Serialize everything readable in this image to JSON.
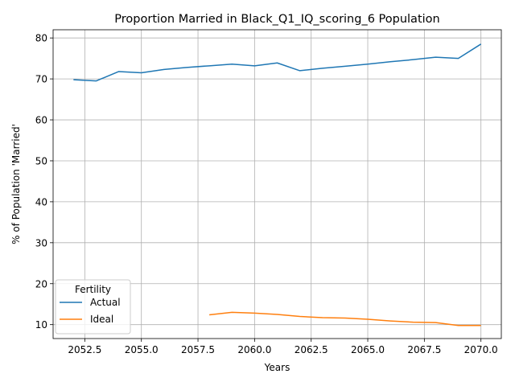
{
  "chart_data": {
    "type": "line",
    "title": "Proportion Married in Black_Q1_IQ_scoring_6 Population",
    "xlabel": "Years",
    "ylabel": "% of Population 'Married'",
    "xlim": [
      2051.1,
      2070.9
    ],
    "ylim": [
      6.6,
      82.0
    ],
    "xticks": [
      2052.5,
      2055.0,
      2057.5,
      2060.0,
      2062.5,
      2065.0,
      2067.5,
      2070.0
    ],
    "xtick_labels": [
      "2052.5",
      "2055.0",
      "2057.5",
      "2060.0",
      "2062.5",
      "2065.0",
      "2067.5",
      "2070.0"
    ],
    "yticks": [
      10,
      20,
      30,
      40,
      50,
      60,
      70,
      80
    ],
    "ytick_labels": [
      "10",
      "20",
      "30",
      "40",
      "50",
      "60",
      "70",
      "80"
    ],
    "grid": true,
    "legend": {
      "title": "Fertility",
      "placement": "lower-left"
    },
    "series": [
      {
        "name": "Actual",
        "color": "#1f77b4",
        "x": [
          2052,
          2053,
          2054,
          2055,
          2056,
          2057,
          2058,
          2059,
          2060,
          2061,
          2062,
          2063,
          2064,
          2065,
          2066,
          2067,
          2068,
          2069,
          2070
        ],
        "y": [
          69.8,
          69.5,
          71.8,
          71.5,
          72.3,
          72.8,
          73.2,
          73.6,
          73.2,
          73.9,
          72.0,
          72.6,
          73.1,
          73.6,
          74.2,
          74.7,
          75.3,
          75.0,
          78.5
        ]
      },
      {
        "name": "Ideal",
        "color": "#ff7f0e",
        "x": [
          2058,
          2059,
          2060,
          2061,
          2062,
          2063,
          2064,
          2065,
          2066,
          2067,
          2068,
          2069,
          2070
        ],
        "y": [
          12.4,
          13.0,
          12.8,
          12.5,
          12.0,
          11.7,
          11.6,
          11.3,
          10.9,
          10.6,
          10.5,
          9.8,
          9.8
        ]
      }
    ]
  }
}
